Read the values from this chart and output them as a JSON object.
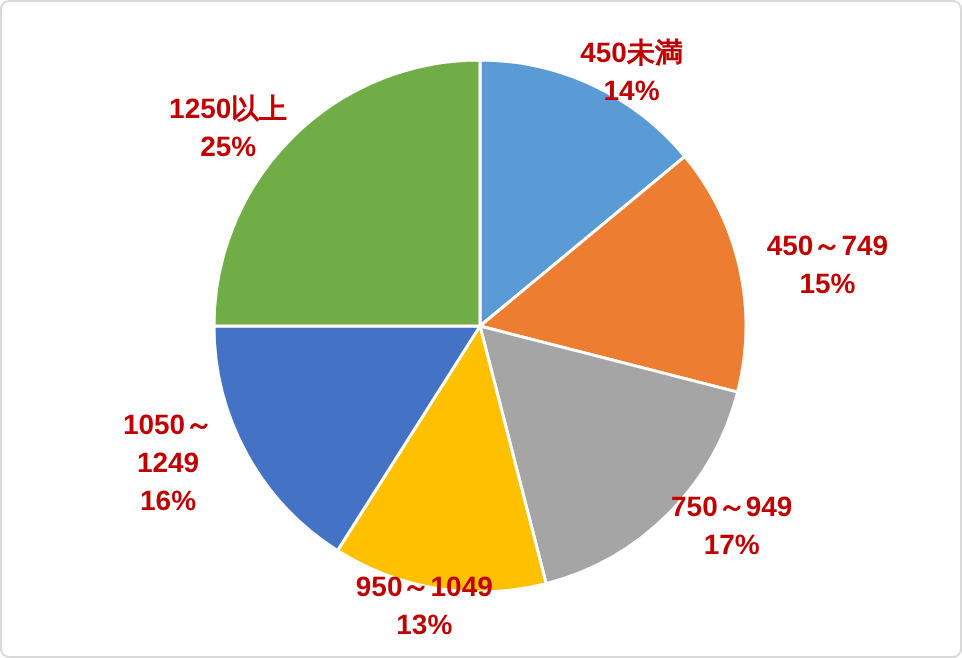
{
  "chart_data": {
    "type": "pie",
    "categories": [
      "450未満",
      "450～749",
      "750～949",
      "950～1049",
      "1050～1249",
      "1250以上"
    ],
    "values": [
      14,
      15,
      17,
      13,
      16,
      25
    ],
    "colors": [
      "#5b9bd5",
      "#ed7d31",
      "#a5a5a5",
      "#ffc000",
      "#4472c4",
      "#70ad47"
    ],
    "value_labels": [
      "14%",
      "15%",
      "17%",
      "13%",
      "16%",
      "25%"
    ]
  }
}
